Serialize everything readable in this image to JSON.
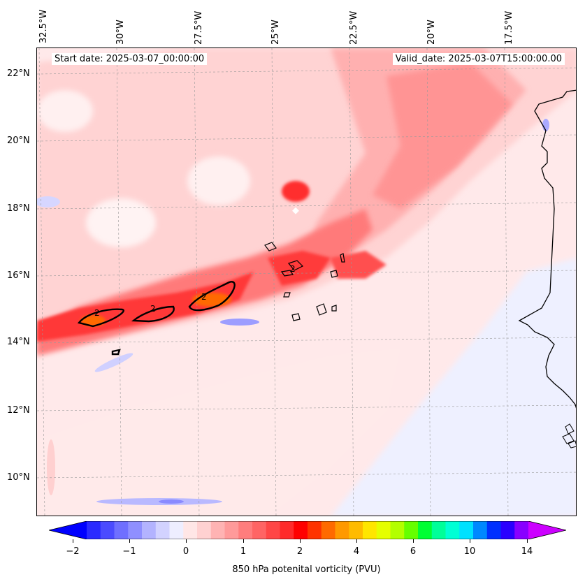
{
  "header": {
    "start_date": "Start date: 2025-03-07_00:00:00",
    "valid_date": "Valid_date: 2025-03-07T15:00:00.00"
  },
  "axes": {
    "longitude_labels": [
      "32.5°W",
      "30°W",
      "27.5°W",
      "25°W",
      "22.5°W",
      "20°W",
      "17.5°W"
    ],
    "latitude_labels": [
      "22°N",
      "20°N",
      "18°N",
      "16°N",
      "14°N",
      "12°N",
      "10°N"
    ]
  },
  "contour_labels": [
    "2",
    "2",
    "2",
    "2"
  ],
  "colorbar": {
    "tick_labels": [
      "−2",
      "−1",
      "0",
      "1",
      "2",
      "4",
      "6",
      "10",
      "14"
    ],
    "label": "850 hPa potenital vorticity (PVU)",
    "colors": [
      "#0000ff",
      "#2a2aff",
      "#4b4bff",
      "#6f6fff",
      "#8f8fff",
      "#b3b3ff",
      "#d2d2ff",
      "#eeeeff",
      "#ffe6e6",
      "#ffd1d1",
      "#ffb3b3",
      "#ff9a9a",
      "#ff7d7d",
      "#ff6464",
      "#ff4646",
      "#ff2a2a",
      "#ff0000",
      "#ff3300",
      "#ff6a00",
      "#ff9900",
      "#ffbb00",
      "#ffe600",
      "#e5ff00",
      "#b3ff00",
      "#66ff00",
      "#00ff33",
      "#00ff99",
      "#00ffd5",
      "#00e1ff",
      "#0088ff",
      "#0030ff",
      "#2a00ff",
      "#8800ff",
      "#cc00ff"
    ]
  },
  "chart_data": {
    "type": "heatmap",
    "title": "",
    "field": "850 hPa potenital vorticity (PVU)",
    "start_date": "2025-03-07_00:00:00",
    "valid_date": "2025-03-07T15:00:00.00",
    "lon_range": [
      -33,
      -15.5
    ],
    "lat_range": [
      9,
      22.8
    ],
    "colorbar_ticks": [
      -2,
      -1,
      0,
      1,
      2,
      4,
      6,
      10,
      14
    ],
    "contour_level": 2,
    "grid": true
  }
}
